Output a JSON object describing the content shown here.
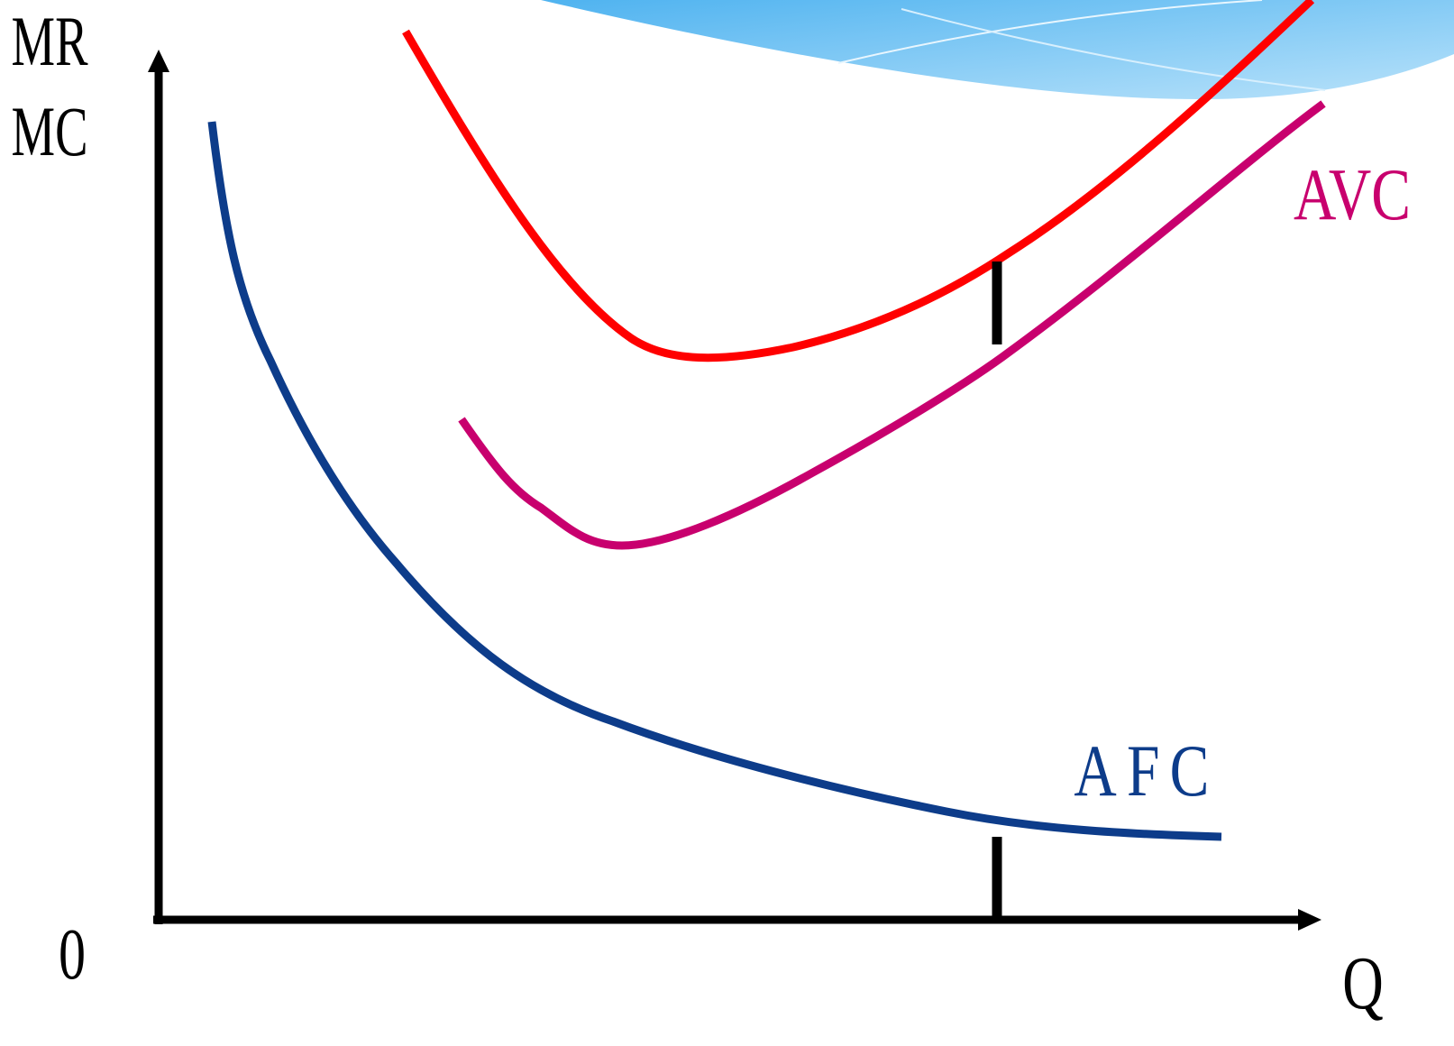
{
  "labels": {
    "y_axis": [
      "MR",
      "MC"
    ],
    "origin": "0",
    "x_axis": "Q",
    "avc": "AVC",
    "afc": "AFC"
  }
}
